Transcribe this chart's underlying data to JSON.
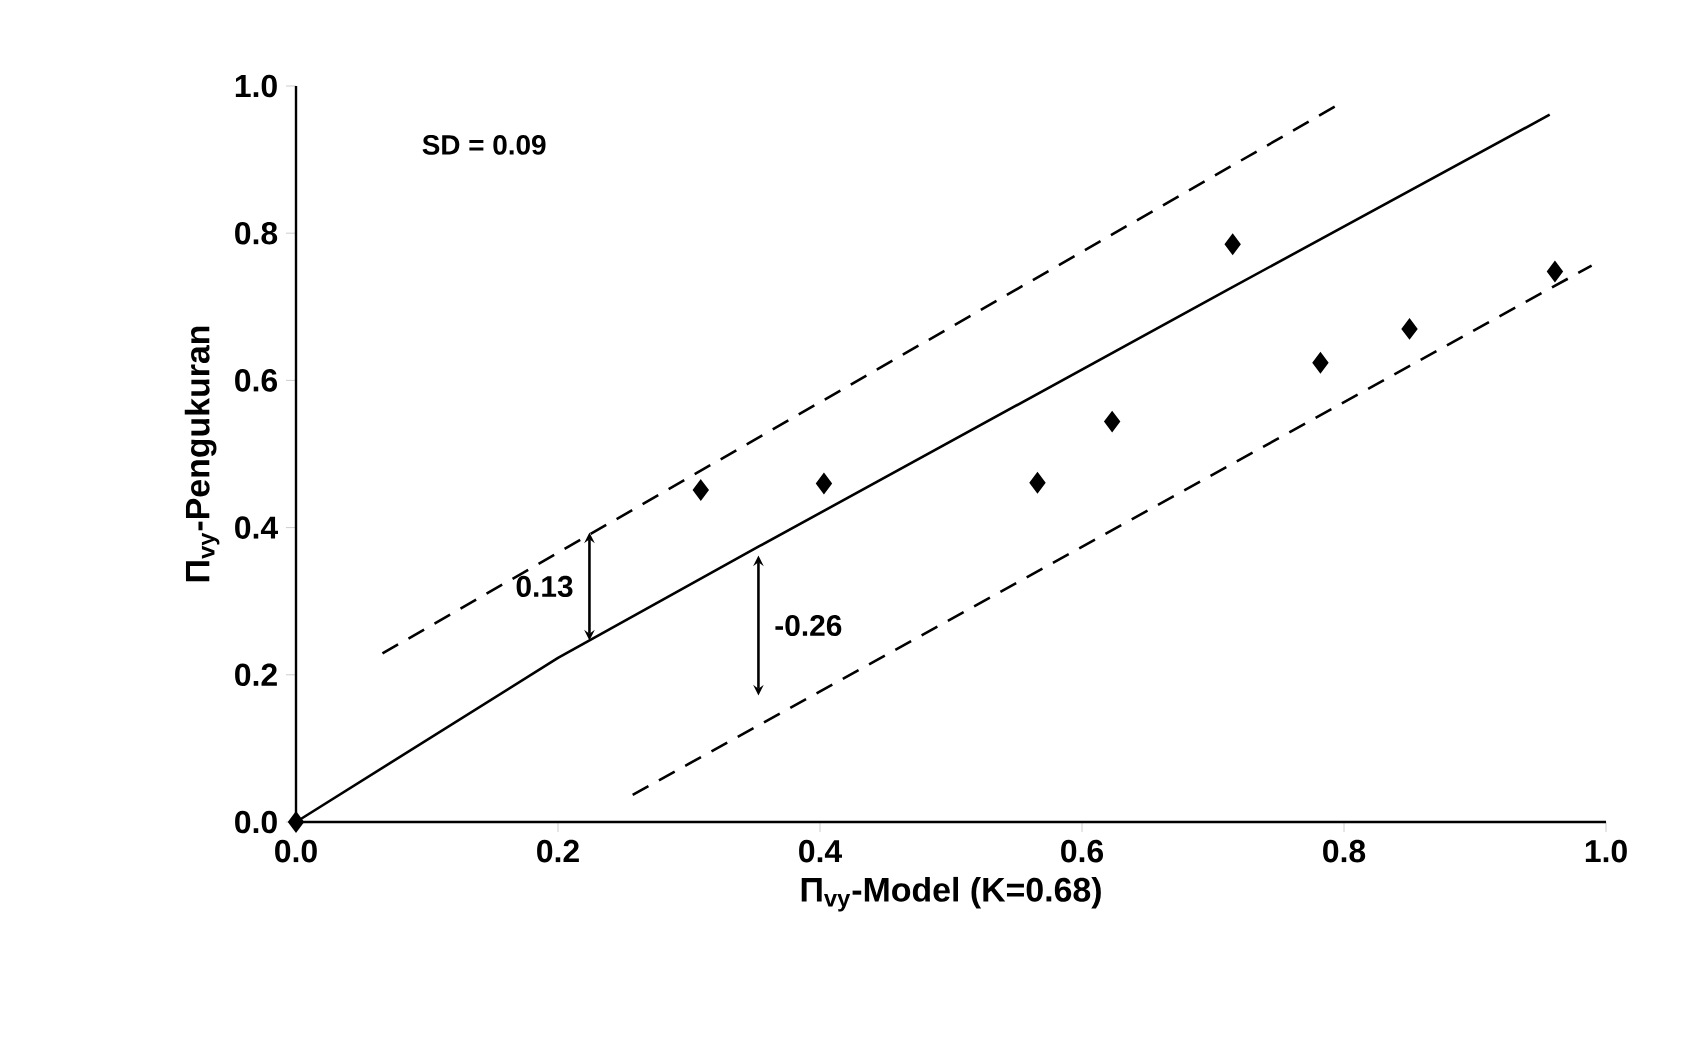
{
  "chart_data": {
    "type": "scatter",
    "xlabel": "Π$_{vy}$-Model (K=0.68)",
    "ylabel": "Π$_{vy}$-Pengukuran",
    "xlim": [
      0,
      1
    ],
    "ylim": [
      0,
      1
    ],
    "xticks": [
      {
        "value": 0,
        "label": "0.0"
      },
      0.2,
      0.4,
      0.6,
      0.8,
      {
        "value": 1,
        "label": "1.0"
      }
    ],
    "yticks": [
      {
        "value": 0,
        "label": "0.0"
      },
      0.2,
      0.4,
      0.6,
      0.8,
      {
        "value": 1,
        "label": "1.0"
      }
    ],
    "grid": false,
    "annotations": [
      "SD = 0.09",
      "0.13",
      "-0.26"
    ],
    "series": [
      {
        "color": "#000000",
        "marker": "diamond",
        "x": [
          0,
          0.309,
          0.403,
          0.566,
          0.623,
          0.715,
          0.782,
          0.85,
          0.961
        ],
        "values": [
          0,
          0.451,
          0.46,
          0.461,
          0.544,
          0.785,
          0.624,
          0.67,
          0.748
        ]
      },
      {
        "type": "line",
        "color": "#000000",
        "line_style": "solid",
        "x": [
          0,
          0.2,
          0.354,
          0.711,
          0.957
        ],
        "values": [
          0,
          0.223,
          0.375,
          0.723,
          0.961
        ]
      },
      {
        "type": "line",
        "color": "#000000",
        "line_style": "dashed",
        "x": [
          0.066,
          0.795
        ],
        "values": [
          0.229,
          0.974
        ]
      },
      {
        "type": "line",
        "color": "#000000",
        "line_style": "dashed",
        "x": [
          0.257,
          0.989
        ],
        "values": [
          0.037,
          0.756
        ]
      }
    ]
  }
}
